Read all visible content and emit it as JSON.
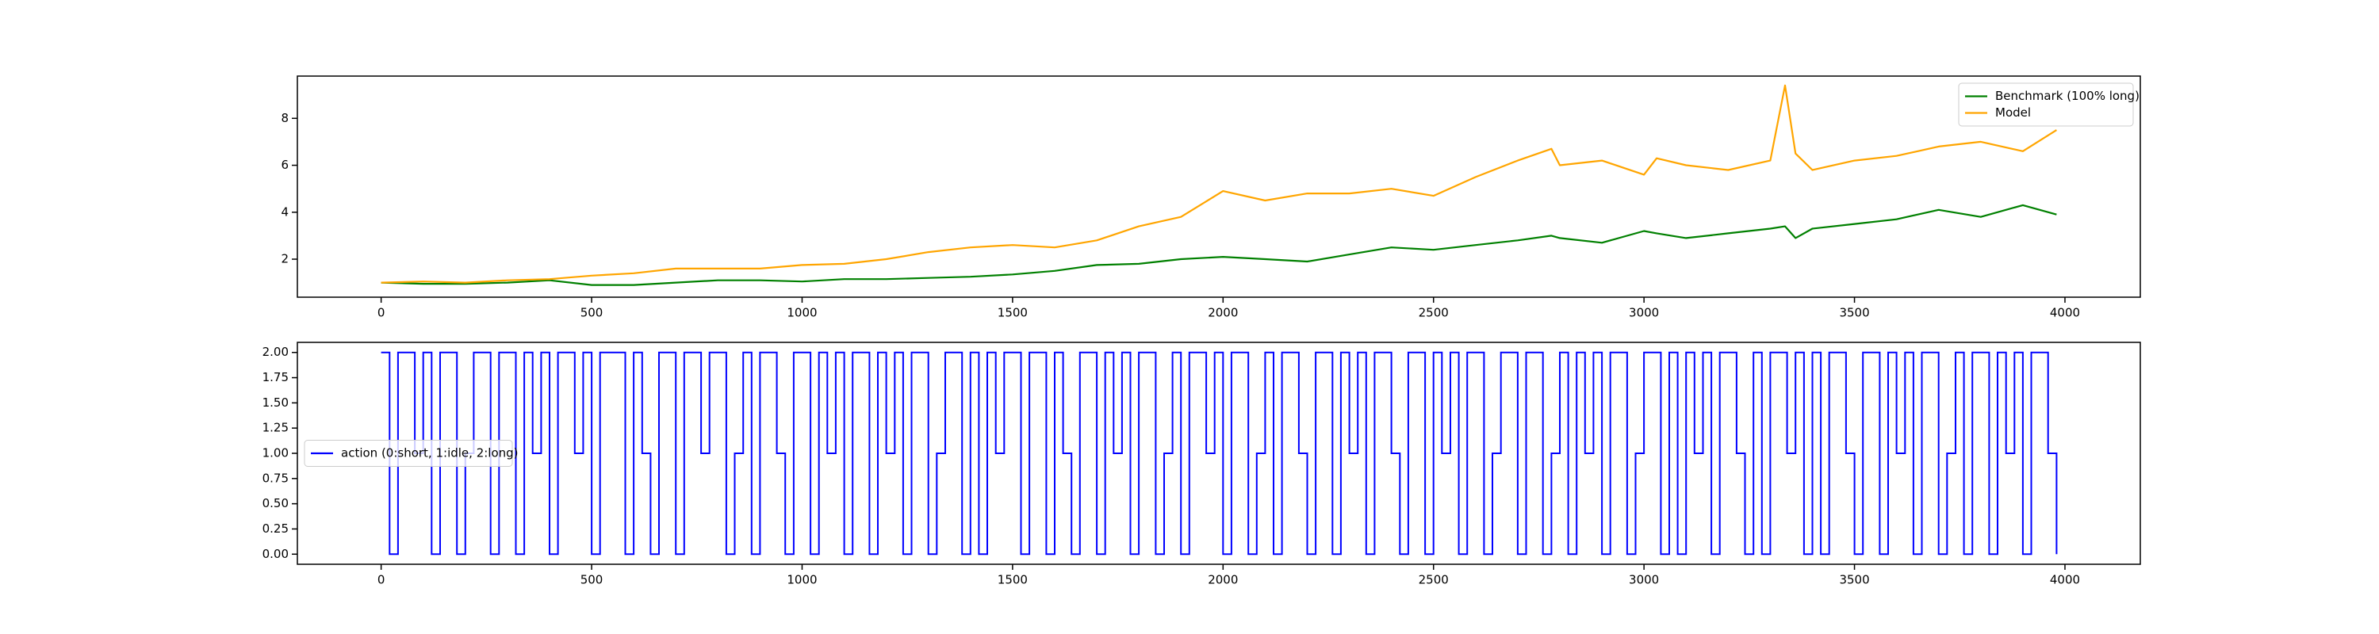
{
  "chart_data": [
    {
      "type": "line",
      "x": [
        0,
        100,
        200,
        300,
        400,
        500,
        600,
        700,
        800,
        900,
        1000,
        1100,
        1200,
        1300,
        1400,
        1500,
        1600,
        1700,
        1800,
        1900,
        2000,
        2100,
        2200,
        2300,
        2400,
        2500,
        2600,
        2700,
        2780,
        2800,
        2900,
        3000,
        3030,
        3100,
        3200,
        3300,
        3335,
        3360,
        3400,
        3500,
        3600,
        3700,
        3800,
        3900,
        3980
      ],
      "series": [
        {
          "name": "Benchmark (100% long)",
          "color": "green",
          "values": [
            1.0,
            0.95,
            0.95,
            1.0,
            1.1,
            0.9,
            0.9,
            1.0,
            1.1,
            1.1,
            1.05,
            1.15,
            1.15,
            1.2,
            1.25,
            1.35,
            1.5,
            1.75,
            1.8,
            2.0,
            2.1,
            2.0,
            1.9,
            2.2,
            2.5,
            2.4,
            2.6,
            2.8,
            3.0,
            2.9,
            2.7,
            3.2,
            3.1,
            2.9,
            3.1,
            3.3,
            3.4,
            2.9,
            3.3,
            3.5,
            3.7,
            4.1,
            3.8,
            4.3,
            3.9
          ]
        },
        {
          "name": "Model",
          "color": "orange",
          "values": [
            1.0,
            1.05,
            1.0,
            1.1,
            1.15,
            1.3,
            1.4,
            1.6,
            1.6,
            1.6,
            1.75,
            1.8,
            2.0,
            2.3,
            2.5,
            2.6,
            2.5,
            2.8,
            3.4,
            3.8,
            4.9,
            4.5,
            4.8,
            4.8,
            5.0,
            4.7,
            5.5,
            6.2,
            6.7,
            6.0,
            6.2,
            5.6,
            6.3,
            6.0,
            5.8,
            6.2,
            9.4,
            6.5,
            5.8,
            6.2,
            6.4,
            6.8,
            7.0,
            6.6,
            7.5
          ]
        }
      ],
      "xlim": [
        -199,
        4179
      ],
      "xticks": [
        0,
        500,
        1000,
        1500,
        2000,
        2500,
        3000,
        3500,
        4000
      ],
      "ylim": [
        0.38,
        9.8
      ],
      "yticks": [
        2,
        4,
        6,
        8
      ],
      "legend": "upper right"
    },
    {
      "type": "step",
      "x": [
        0,
        20,
        40,
        60,
        80,
        100,
        120,
        140,
        160,
        180,
        200,
        220,
        240,
        260,
        280,
        300,
        320,
        340,
        360,
        380,
        400,
        420,
        440,
        460,
        480,
        500,
        520,
        540,
        560,
        580,
        600,
        620,
        640,
        660,
        680,
        700,
        720,
        740,
        760,
        780,
        800,
        820,
        840,
        860,
        880,
        900,
        920,
        940,
        960,
        980,
        1000,
        1020,
        1040,
        1060,
        1080,
        1100,
        1120,
        1140,
        1160,
        1180,
        1200,
        1220,
        1240,
        1260,
        1280,
        1300,
        1320,
        1340,
        1360,
        1380,
        1400,
        1420,
        1440,
        1460,
        1480,
        1500,
        1520,
        1540,
        1560,
        1580,
        1600,
        1620,
        1640,
        1660,
        1680,
        1700,
        1720,
        1740,
        1760,
        1780,
        1800,
        1820,
        1840,
        1860,
        1880,
        1900,
        1920,
        1940,
        1960,
        1980,
        2000,
        2020,
        2040,
        2060,
        2080,
        2100,
        2120,
        2140,
        2160,
        2180,
        2200,
        2220,
        2240,
        2260,
        2280,
        2300,
        2320,
        2340,
        2360,
        2380,
        2400,
        2420,
        2440,
        2460,
        2480,
        2500,
        2520,
        2540,
        2560,
        2580,
        2600,
        2620,
        2640,
        2660,
        2680,
        2700,
        2720,
        2740,
        2760,
        2780,
        2800,
        2820,
        2840,
        2860,
        2880,
        2900,
        2920,
        2940,
        2960,
        2980,
        3000,
        3020,
        3040,
        3060,
        3080,
        3100,
        3120,
        3140,
        3160,
        3180,
        3200,
        3220,
        3240,
        3260,
        3280,
        3300,
        3320,
        3340,
        3360,
        3380,
        3400,
        3420,
        3440,
        3460,
        3480,
        3500,
        3520,
        3540,
        3560,
        3580,
        3600,
        3620,
        3640,
        3660,
        3680,
        3700,
        3720,
        3740,
        3760,
        3780,
        3800,
        3820,
        3840,
        3860,
        3880,
        3900,
        3920,
        3940,
        3960,
        3980
      ],
      "series": [
        {
          "name": "action (0:short, 1:idle, 2:long)",
          "color": "blue",
          "values": [
            2,
            0,
            2,
            2,
            1,
            2,
            0,
            2,
            2,
            0,
            1,
            2,
            2,
            0,
            2,
            2,
            0,
            2,
            1,
            2,
            0,
            2,
            2,
            1,
            2,
            0,
            2,
            2,
            2,
            0,
            2,
            1,
            0,
            2,
            2,
            0,
            2,
            2,
            1,
            2,
            2,
            0,
            1,
            2,
            0,
            2,
            2,
            1,
            0,
            2,
            2,
            0,
            2,
            1,
            2,
            0,
            2,
            2,
            0,
            2,
            1,
            2,
            0,
            2,
            2,
            0,
            1,
            2,
            2,
            0,
            2,
            0,
            2,
            1,
            2,
            2,
            0,
            2,
            2,
            0,
            2,
            1,
            0,
            2,
            2,
            0,
            2,
            1,
            2,
            0,
            2,
            2,
            0,
            1,
            2,
            0,
            2,
            2,
            1,
            2,
            0,
            2,
            2,
            0,
            1,
            2,
            0,
            2,
            2,
            1,
            0,
            2,
            2,
            0,
            2,
            1,
            2,
            0,
            2,
            2,
            1,
            0,
            2,
            2,
            0,
            2,
            1,
            2,
            0,
            2,
            2,
            0,
            1,
            2,
            2,
            0,
            2,
            2,
            0,
            1,
            2,
            0,
            2,
            1,
            2,
            0,
            2,
            2,
            0,
            1,
            2,
            2,
            0,
            2,
            0,
            2,
            1,
            2,
            0,
            2,
            2,
            1,
            0,
            2,
            0,
            2,
            2,
            1,
            2,
            0,
            2,
            0,
            2,
            2,
            1,
            0,
            2,
            2,
            0,
            2,
            1,
            2,
            0,
            2,
            2,
            0,
            1,
            2,
            0,
            2,
            2,
            0,
            2,
            1,
            2,
            0,
            2,
            2,
            1,
            0
          ]
        }
      ],
      "xlim": [
        -199,
        4179
      ],
      "xticks": [
        0,
        500,
        1000,
        1500,
        2000,
        2500,
        3000,
        3500,
        4000
      ],
      "ylim": [
        -0.1,
        2.1
      ],
      "yticks": [
        {
          "value": 0,
          "label": "0.00"
        },
        {
          "value": 0.25,
          "label": "0.25"
        },
        {
          "value": 0.5,
          "label": "0.50"
        },
        {
          "value": 0.75,
          "label": "0.75"
        },
        {
          "value": 1,
          "label": "1.00"
        },
        {
          "value": 1.25,
          "label": "1.25"
        },
        {
          "value": 1.5,
          "label": "1.50"
        },
        {
          "value": 1.75,
          "label": "1.75"
        },
        {
          "value": 2,
          "label": "2.00"
        }
      ],
      "legend": "center left"
    }
  ]
}
